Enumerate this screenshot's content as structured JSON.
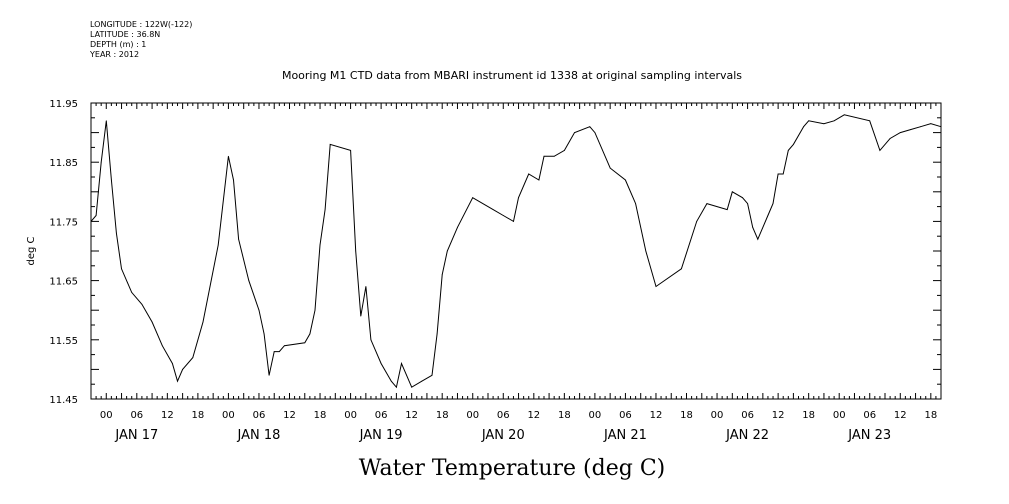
{
  "metadata": {
    "lines": [
      "LONGITUDE : 122W(-122)",
      "LATITUDE : 36.8N",
      "DEPTH (m) : 1",
      "YEAR : 2012"
    ]
  },
  "chart_data": {
    "type": "line",
    "title": "Mooring M1 CTD data from MBARI instrument id 1338 at original sampling intervals",
    "xlabel": "Water Temperature (deg C)",
    "ylabel": "deg C",
    "ylim": [
      11.45,
      11.95
    ],
    "xlim": [
      "2012-01-16T21:00",
      "2012-01-23T20:00"
    ],
    "y_tick_labels": [
      "11.45",
      "11.55",
      "11.65",
      "11.75",
      "11.85",
      "11.95"
    ],
    "x_hour_labels": [
      "00",
      "06",
      "12",
      "18"
    ],
    "x_day_labels": [
      "JAN 17",
      "JAN 18",
      "JAN 19",
      "JAN 20",
      "JAN 21",
      "JAN 22",
      "JAN 23"
    ],
    "grid": false,
    "series": [
      {
        "points": [
          [
            "2012-01-16T21:00",
            11.75
          ],
          [
            "2012-01-16T22:00",
            11.76
          ],
          [
            "2012-01-16T23:00",
            11.85
          ],
          [
            "2012-01-17T00:00",
            11.92
          ],
          [
            "2012-01-17T01:00",
            11.82
          ],
          [
            "2012-01-17T02:00",
            11.73
          ],
          [
            "2012-01-17T03:00",
            11.67
          ],
          [
            "2012-01-17T05:00",
            11.63
          ],
          [
            "2012-01-17T07:00",
            11.61
          ],
          [
            "2012-01-17T09:00",
            11.58
          ],
          [
            "2012-01-17T11:00",
            11.54
          ],
          [
            "2012-01-17T13:00",
            11.51
          ],
          [
            "2012-01-17T14:00",
            11.48
          ],
          [
            "2012-01-17T15:00",
            11.5
          ],
          [
            "2012-01-17T17:00",
            11.52
          ],
          [
            "2012-01-17T19:00",
            11.58
          ],
          [
            "2012-01-17T22:00",
            11.71
          ],
          [
            "2012-01-18T00:00",
            11.86
          ],
          [
            "2012-01-18T01:00",
            11.82
          ],
          [
            "2012-01-18T02:00",
            11.72
          ],
          [
            "2012-01-18T04:00",
            11.65
          ],
          [
            "2012-01-18T06:00",
            11.6
          ],
          [
            "2012-01-18T07:00",
            11.56
          ],
          [
            "2012-01-18T08:00",
            11.49
          ],
          [
            "2012-01-18T09:00",
            11.53
          ],
          [
            "2012-01-18T10:00",
            11.53
          ],
          [
            "2012-01-18T11:00",
            11.54
          ],
          [
            "2012-01-18T15:00",
            11.545
          ],
          [
            "2012-01-18T16:00",
            11.56
          ],
          [
            "2012-01-18T17:00",
            11.6
          ],
          [
            "2012-01-18T18:00",
            11.71
          ],
          [
            "2012-01-18T19:00",
            11.77
          ],
          [
            "2012-01-18T20:00",
            11.88
          ],
          [
            "2012-01-19T00:00",
            11.87
          ],
          [
            "2012-01-19T01:00",
            11.7
          ],
          [
            "2012-01-19T02:00",
            11.59
          ],
          [
            "2012-01-19T03:00",
            11.64
          ],
          [
            "2012-01-19T04:00",
            11.55
          ],
          [
            "2012-01-19T06:00",
            11.51
          ],
          [
            "2012-01-19T08:00",
            11.48
          ],
          [
            "2012-01-19T09:00",
            11.47
          ],
          [
            "2012-01-19T10:00",
            11.51
          ],
          [
            "2012-01-19T11:00",
            11.49
          ],
          [
            "2012-01-19T12:00",
            11.47
          ],
          [
            "2012-01-19T14:00",
            11.48
          ],
          [
            "2012-01-19T16:00",
            11.49
          ],
          [
            "2012-01-19T17:00",
            11.56
          ],
          [
            "2012-01-19T18:00",
            11.66
          ],
          [
            "2012-01-19T19:00",
            11.7
          ],
          [
            "2012-01-19T21:00",
            11.74
          ],
          [
            "2012-01-20T00:00",
            11.79
          ],
          [
            "2012-01-20T04:00",
            11.77
          ],
          [
            "2012-01-20T06:00",
            11.76
          ],
          [
            "2012-01-20T08:00",
            11.75
          ],
          [
            "2012-01-20T09:00",
            11.79
          ],
          [
            "2012-01-20T11:00",
            11.83
          ],
          [
            "2012-01-20T13:00",
            11.82
          ],
          [
            "2012-01-20T14:00",
            11.86
          ],
          [
            "2012-01-20T16:00",
            11.86
          ],
          [
            "2012-01-20T18:00",
            11.87
          ],
          [
            "2012-01-20T20:00",
            11.9
          ],
          [
            "2012-01-20T23:00",
            11.91
          ],
          [
            "2012-01-21T00:00",
            11.9
          ],
          [
            "2012-01-21T03:00",
            11.84
          ],
          [
            "2012-01-21T06:00",
            11.82
          ],
          [
            "2012-01-21T08:00",
            11.78
          ],
          [
            "2012-01-21T10:00",
            11.7
          ],
          [
            "2012-01-21T12:00",
            11.64
          ],
          [
            "2012-01-21T17:00",
            11.67
          ],
          [
            "2012-01-21T20:00",
            11.75
          ],
          [
            "2012-01-21T22:00",
            11.78
          ],
          [
            "2012-01-22T02:00",
            11.77
          ],
          [
            "2012-01-22T03:00",
            11.8
          ],
          [
            "2012-01-22T05:00",
            11.79
          ],
          [
            "2012-01-22T06:00",
            11.78
          ],
          [
            "2012-01-22T07:00",
            11.74
          ],
          [
            "2012-01-22T08:00",
            11.72
          ],
          [
            "2012-01-22T10:00",
            11.76
          ],
          [
            "2012-01-22T11:00",
            11.78
          ],
          [
            "2012-01-22T12:00",
            11.83
          ],
          [
            "2012-01-22T13:00",
            11.83
          ],
          [
            "2012-01-22T14:00",
            11.87
          ],
          [
            "2012-01-22T15:00",
            11.88
          ],
          [
            "2012-01-22T17:00",
            11.91
          ],
          [
            "2012-01-22T18:00",
            11.92
          ],
          [
            "2012-01-22T21:00",
            11.915
          ],
          [
            "2012-01-22T23:00",
            11.92
          ],
          [
            "2012-01-23T01:00",
            11.93
          ],
          [
            "2012-01-23T06:00",
            11.92
          ],
          [
            "2012-01-23T08:00",
            11.87
          ],
          [
            "2012-01-23T10:00",
            11.89
          ],
          [
            "2012-01-23T12:00",
            11.9
          ],
          [
            "2012-01-23T14:00",
            11.905
          ],
          [
            "2012-01-23T16:00",
            11.91
          ],
          [
            "2012-01-23T18:00",
            11.915
          ],
          [
            "2012-01-23T20:00",
            11.91
          ]
        ]
      }
    ]
  }
}
